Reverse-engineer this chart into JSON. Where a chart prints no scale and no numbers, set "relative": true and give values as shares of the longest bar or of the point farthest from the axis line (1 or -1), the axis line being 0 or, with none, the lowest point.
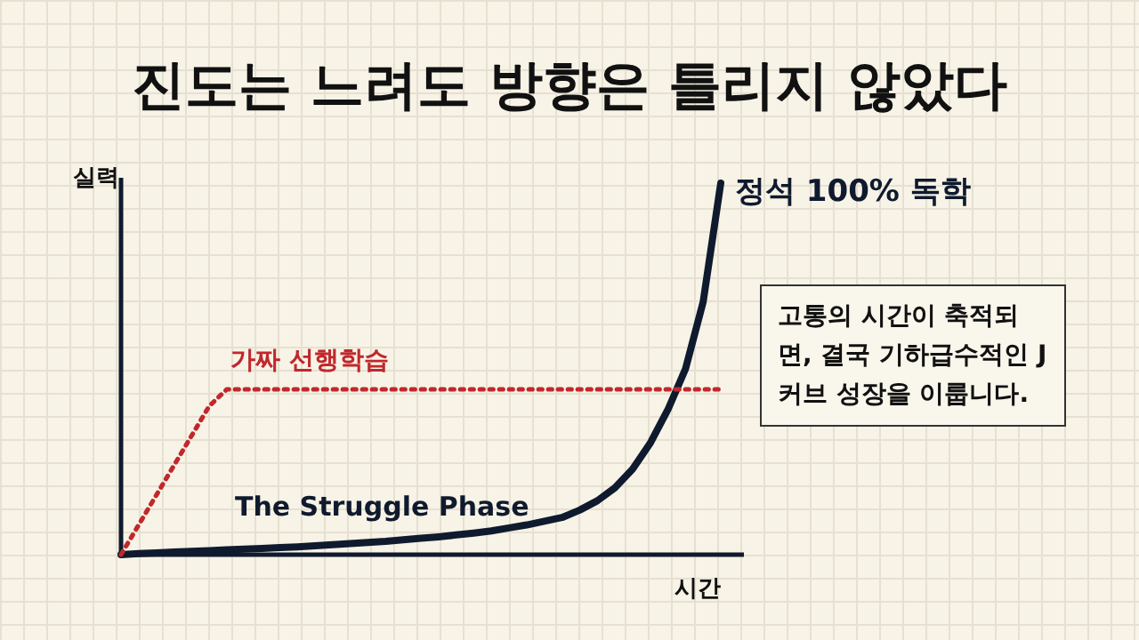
{
  "chart_data": {
    "type": "line",
    "relative": true,
    "title": "진도는 느려도 방향은 틀리지 않았다",
    "xlabel": "시간",
    "ylabel": "실력",
    "legend": false,
    "grid": false,
    "categories": [
      null,
      null,
      null,
      null,
      null,
      null,
      null,
      null,
      null,
      null,
      null,
      null,
      null,
      null,
      null,
      null,
      null,
      null,
      null,
      null,
      null,
      null,
      null,
      null,
      null,
      null,
      null,
      null,
      null,
      null,
      null,
      null,
      null,
      null,
      null
    ],
    "series": [
      {
        "name": "정석 100% 독학",
        "color": "#0f1a2e",
        "line_style": "solid",
        "values": [
          0,
          0.003,
          0.005,
          0.007,
          0.009,
          0.011,
          0.013,
          0.015,
          0.017,
          0.019,
          0.021,
          0.024,
          0.027,
          0.03,
          0.033,
          0.036,
          0.04,
          0.044,
          0.048,
          0.053,
          0.058,
          0.064,
          0.072,
          0.08,
          0.09,
          0.1,
          0.12,
          0.145,
          0.18,
          0.23,
          0.3,
          0.39,
          0.5,
          0.68,
          1
        ]
      },
      {
        "name": "가짜 선행학습",
        "color": "#c0282c",
        "line_style": "dotted",
        "values": [
          0,
          0.08,
          0.16,
          0.24,
          0.32,
          0.4,
          0.445,
          0.445,
          0.445,
          0.445,
          0.445,
          0.445,
          0.445,
          0.445,
          0.445,
          0.445,
          0.445,
          0.445,
          0.445,
          0.445,
          0.445,
          0.445,
          0.445,
          0.445,
          0.445,
          0.445,
          0.445,
          0.445,
          0.445,
          0.445,
          0.445,
          0.445,
          0.445,
          0.445,
          0.445
        ]
      }
    ],
    "annotations": [
      "The Struggle Phase",
      "고통의 시간이 축적되면, 결국 기하급수적인 J커브 성장을 이룹니다."
    ]
  }
}
